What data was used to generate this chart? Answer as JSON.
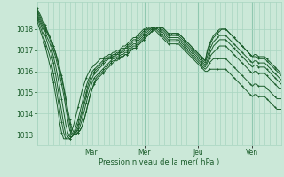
{
  "background_color": "#cbe8d8",
  "grid_color": "#a8d5c0",
  "line_color": "#1a5c2a",
  "marker_color": "#1a5c2a",
  "xlabel": "Pression niveau de la mer( hPa )",
  "ylim": [
    1012.5,
    1019.3
  ],
  "yticks": [
    1013,
    1014,
    1015,
    1016,
    1017,
    1018
  ],
  "day_labels": [
    "Mar",
    "Mer",
    "Jeu",
    "Ven"
  ],
  "day_positions": [
    0.22,
    0.44,
    0.66,
    0.88
  ],
  "num_points": 120,
  "series": [
    [
      1018.9,
      1018.7,
      1018.5,
      1018.3,
      1018.1,
      1017.9,
      1017.7,
      1017.5,
      1017.2,
      1016.9,
      1016.6,
      1016.2,
      1015.8,
      1015.3,
      1014.8,
      1014.2,
      1013.7,
      1013.3,
      1013.1,
      1013.0,
      1013.1,
      1013.2,
      1013.4,
      1013.7,
      1014.1,
      1014.5,
      1014.9,
      1015.2,
      1015.4,
      1015.6,
      1015.7,
      1015.8,
      1015.9,
      1016.0,
      1016.1,
      1016.2,
      1016.3,
      1016.4,
      1016.5,
      1016.5,
      1016.6,
      1016.7,
      1016.7,
      1016.8,
      1016.8,
      1016.9,
      1017.0,
      1017.1,
      1017.1,
      1017.2,
      1017.3,
      1017.4,
      1017.5,
      1017.6,
      1017.7,
      1017.8,
      1017.9,
      1018.0,
      1018.0,
      1018.1,
      1018.1,
      1018.1,
      1018.0,
      1017.9,
      1017.8,
      1017.8,
      1017.8,
      1017.8,
      1017.8,
      1017.8,
      1017.7,
      1017.6,
      1017.5,
      1017.4,
      1017.3,
      1017.2,
      1017.1,
      1017.0,
      1016.9,
      1016.8,
      1016.7,
      1016.6,
      1016.5,
      1016.9,
      1017.2,
      1017.4,
      1017.6,
      1017.7,
      1017.8,
      1017.9,
      1018.0,
      1018.0,
      1018.0,
      1017.9,
      1017.8,
      1017.7,
      1017.6,
      1017.5,
      1017.4,
      1017.3,
      1017.2,
      1017.1,
      1017.0,
      1016.9,
      1016.8,
      1016.7,
      1016.8,
      1016.8,
      1016.7,
      1016.7,
      1016.7,
      1016.7,
      1016.6,
      1016.5,
      1016.4,
      1016.3,
      1016.2,
      1016.1,
      1016.0,
      1015.9
    ],
    [
      1018.8,
      1018.6,
      1018.4,
      1018.2,
      1018.0,
      1017.8,
      1017.6,
      1017.3,
      1017.0,
      1016.7,
      1016.3,
      1015.9,
      1015.4,
      1014.9,
      1014.3,
      1013.7,
      1013.2,
      1013.0,
      1013.0,
      1013.1,
      1013.2,
      1013.4,
      1013.7,
      1014.1,
      1014.5,
      1014.9,
      1015.2,
      1015.5,
      1015.7,
      1015.8,
      1015.9,
      1016.0,
      1016.1,
      1016.2,
      1016.3,
      1016.4,
      1016.5,
      1016.6,
      1016.6,
      1016.7,
      1016.7,
      1016.8,
      1016.8,
      1016.9,
      1016.9,
      1017.0,
      1017.1,
      1017.2,
      1017.2,
      1017.3,
      1017.4,
      1017.5,
      1017.6,
      1017.7,
      1017.8,
      1017.9,
      1018.0,
      1018.0,
      1018.1,
      1018.1,
      1018.1,
      1018.0,
      1017.9,
      1017.8,
      1017.7,
      1017.7,
      1017.7,
      1017.7,
      1017.7,
      1017.7,
      1017.6,
      1017.5,
      1017.4,
      1017.3,
      1017.2,
      1017.1,
      1017.0,
      1016.9,
      1016.8,
      1016.7,
      1016.6,
      1016.5,
      1016.4,
      1016.7,
      1017.0,
      1017.2,
      1017.4,
      1017.5,
      1017.6,
      1017.7,
      1017.7,
      1017.7,
      1017.7,
      1017.6,
      1017.5,
      1017.4,
      1017.3,
      1017.2,
      1017.1,
      1017.0,
      1016.9,
      1016.8,
      1016.7,
      1016.6,
      1016.5,
      1016.4,
      1016.5,
      1016.5,
      1016.4,
      1016.4,
      1016.4,
      1016.4,
      1016.3,
      1016.2,
      1016.1,
      1016.0,
      1015.9,
      1015.8,
      1015.7,
      1015.6
    ],
    [
      1018.7,
      1018.5,
      1018.3,
      1018.1,
      1017.9,
      1017.6,
      1017.4,
      1017.1,
      1016.7,
      1016.3,
      1015.8,
      1015.3,
      1014.7,
      1014.1,
      1013.5,
      1013.1,
      1012.9,
      1012.9,
      1013.0,
      1013.1,
      1013.3,
      1013.6,
      1014.0,
      1014.4,
      1014.8,
      1015.2,
      1015.5,
      1015.7,
      1015.9,
      1016.0,
      1016.1,
      1016.2,
      1016.3,
      1016.4,
      1016.5,
      1016.6,
      1016.6,
      1016.7,
      1016.7,
      1016.8,
      1016.8,
      1016.9,
      1016.9,
      1017.0,
      1017.0,
      1017.1,
      1017.2,
      1017.3,
      1017.3,
      1017.4,
      1017.5,
      1017.6,
      1017.7,
      1017.8,
      1017.9,
      1018.0,
      1018.0,
      1018.1,
      1018.1,
      1018.1,
      1018.0,
      1017.9,
      1017.8,
      1017.7,
      1017.6,
      1017.6,
      1017.6,
      1017.6,
      1017.6,
      1017.6,
      1017.5,
      1017.4,
      1017.3,
      1017.2,
      1017.1,
      1017.0,
      1016.9,
      1016.8,
      1016.7,
      1016.6,
      1016.5,
      1016.4,
      1016.3,
      1016.5,
      1016.8,
      1017.0,
      1017.2,
      1017.3,
      1017.4,
      1017.5,
      1017.5,
      1017.5,
      1017.5,
      1017.4,
      1017.3,
      1017.2,
      1017.1,
      1017.0,
      1016.9,
      1016.8,
      1016.7,
      1016.6,
      1016.5,
      1016.4,
      1016.3,
      1016.2,
      1016.3,
      1016.3,
      1016.2,
      1016.2,
      1016.2,
      1016.2,
      1016.1,
      1016.0,
      1015.9,
      1015.8,
      1015.7,
      1015.6,
      1015.5,
      1015.4
    ],
    [
      1018.6,
      1018.4,
      1018.2,
      1017.9,
      1017.7,
      1017.4,
      1017.1,
      1016.8,
      1016.4,
      1015.9,
      1015.3,
      1014.7,
      1014.1,
      1013.5,
      1013.0,
      1012.9,
      1012.8,
      1012.9,
      1013.0,
      1013.2,
      1013.5,
      1013.8,
      1014.2,
      1014.6,
      1015.0,
      1015.4,
      1015.7,
      1015.9,
      1016.0,
      1016.1,
      1016.2,
      1016.3,
      1016.4,
      1016.5,
      1016.6,
      1016.6,
      1016.7,
      1016.7,
      1016.8,
      1016.8,
      1016.9,
      1016.9,
      1017.0,
      1017.1,
      1017.1,
      1017.2,
      1017.3,
      1017.4,
      1017.4,
      1017.5,
      1017.6,
      1017.7,
      1017.8,
      1017.9,
      1018.0,
      1018.0,
      1018.1,
      1018.1,
      1018.1,
      1018.0,
      1017.9,
      1017.8,
      1017.7,
      1017.6,
      1017.5,
      1017.5,
      1017.5,
      1017.5,
      1017.5,
      1017.5,
      1017.4,
      1017.3,
      1017.2,
      1017.1,
      1017.0,
      1016.9,
      1016.8,
      1016.7,
      1016.6,
      1016.5,
      1016.4,
      1016.3,
      1016.2,
      1016.4,
      1016.6,
      1016.8,
      1016.9,
      1017.0,
      1017.1,
      1017.2,
      1017.2,
      1017.2,
      1017.2,
      1017.1,
      1017.0,
      1016.9,
      1016.8,
      1016.7,
      1016.6,
      1016.5,
      1016.4,
      1016.3,
      1016.2,
      1016.1,
      1016.0,
      1015.9,
      1016.0,
      1016.0,
      1015.9,
      1015.9,
      1015.9,
      1015.9,
      1015.8,
      1015.7,
      1015.6,
      1015.5,
      1015.4,
      1015.3,
      1015.2,
      1015.2
    ],
    [
      1018.5,
      1018.3,
      1018.0,
      1017.7,
      1017.4,
      1017.1,
      1016.8,
      1016.4,
      1015.9,
      1015.4,
      1014.8,
      1014.2,
      1013.6,
      1013.1,
      1012.8,
      1012.8,
      1012.8,
      1012.9,
      1013.1,
      1013.4,
      1013.7,
      1014.1,
      1014.5,
      1014.9,
      1015.3,
      1015.6,
      1015.8,
      1016.0,
      1016.1,
      1016.2,
      1016.3,
      1016.4,
      1016.5,
      1016.6,
      1016.6,
      1016.7,
      1016.7,
      1016.8,
      1016.8,
      1016.9,
      1016.9,
      1017.0,
      1017.1,
      1017.1,
      1017.2,
      1017.3,
      1017.4,
      1017.5,
      1017.5,
      1017.6,
      1017.7,
      1017.8,
      1017.9,
      1018.0,
      1018.0,
      1018.1,
      1018.1,
      1018.1,
      1018.0,
      1017.9,
      1017.8,
      1017.7,
      1017.6,
      1017.5,
      1017.4,
      1017.4,
      1017.4,
      1017.4,
      1017.4,
      1017.4,
      1017.3,
      1017.2,
      1017.1,
      1017.0,
      1016.9,
      1016.8,
      1016.7,
      1016.6,
      1016.5,
      1016.4,
      1016.3,
      1016.2,
      1016.1,
      1016.2,
      1016.4,
      1016.5,
      1016.6,
      1016.6,
      1016.6,
      1016.6,
      1016.6,
      1016.6,
      1016.6,
      1016.5,
      1016.4,
      1016.3,
      1016.2,
      1016.1,
      1016.0,
      1015.9,
      1015.8,
      1015.7,
      1015.6,
      1015.5,
      1015.4,
      1015.3,
      1015.4,
      1015.4,
      1015.3,
      1015.3,
      1015.3,
      1015.3,
      1015.2,
      1015.1,
      1015.0,
      1014.9,
      1014.8,
      1014.7,
      1014.7,
      1014.7
    ],
    [
      1018.4,
      1018.1,
      1017.8,
      1017.5,
      1017.2,
      1016.8,
      1016.4,
      1016.0,
      1015.5,
      1014.9,
      1014.3,
      1013.6,
      1013.1,
      1012.8,
      1012.8,
      1012.9,
      1013.0,
      1013.2,
      1013.5,
      1013.9,
      1014.3,
      1014.7,
      1015.1,
      1015.4,
      1015.7,
      1015.9,
      1016.1,
      1016.2,
      1016.3,
      1016.4,
      1016.5,
      1016.6,
      1016.6,
      1016.7,
      1016.7,
      1016.8,
      1016.8,
      1016.9,
      1016.9,
      1017.0,
      1017.0,
      1017.1,
      1017.2,
      1017.2,
      1017.3,
      1017.4,
      1017.5,
      1017.6,
      1017.6,
      1017.7,
      1017.8,
      1017.9,
      1018.0,
      1018.0,
      1018.1,
      1018.1,
      1018.1,
      1018.0,
      1017.9,
      1017.8,
      1017.7,
      1017.6,
      1017.5,
      1017.4,
      1017.3,
      1017.3,
      1017.3,
      1017.3,
      1017.3,
      1017.3,
      1017.2,
      1017.1,
      1017.0,
      1016.9,
      1016.8,
      1016.7,
      1016.6,
      1016.5,
      1016.4,
      1016.3,
      1016.2,
      1016.1,
      1016.0,
      1016.0,
      1016.1,
      1016.1,
      1016.1,
      1016.1,
      1016.1,
      1016.1,
      1016.1,
      1016.1,
      1016.1,
      1016.0,
      1015.9,
      1015.8,
      1015.7,
      1015.6,
      1015.5,
      1015.4,
      1015.3,
      1015.2,
      1015.1,
      1015.0,
      1014.9,
      1014.8,
      1014.9,
      1014.9,
      1014.8,
      1014.8,
      1014.8,
      1014.8,
      1014.7,
      1014.6,
      1014.5,
      1014.4,
      1014.3,
      1014.2,
      1014.2,
      1014.2
    ],
    [
      1019.0,
      1018.8,
      1018.6,
      1018.4,
      1018.2,
      1017.9,
      1017.7,
      1017.5,
      1017.2,
      1016.9,
      1016.5,
      1016.1,
      1015.7,
      1015.2,
      1014.6,
      1014.0,
      1013.5,
      1013.1,
      1013.0,
      1013.0,
      1013.1,
      1013.2,
      1013.4,
      1013.7,
      1014.1,
      1014.5,
      1014.9,
      1015.2,
      1015.5,
      1015.7,
      1015.8,
      1015.9,
      1016.0,
      1016.1,
      1016.2,
      1016.3,
      1016.4,
      1016.5,
      1016.5,
      1016.6,
      1016.6,
      1016.7,
      1016.7,
      1016.8,
      1016.8,
      1016.9,
      1017.0,
      1017.1,
      1017.1,
      1017.2,
      1017.3,
      1017.4,
      1017.5,
      1017.6,
      1017.7,
      1017.8,
      1017.9,
      1018.0,
      1018.0,
      1018.1,
      1018.1,
      1018.1,
      1018.0,
      1017.9,
      1017.8,
      1017.7,
      1017.8,
      1017.8,
      1017.8,
      1017.8,
      1017.7,
      1017.6,
      1017.5,
      1017.4,
      1017.3,
      1017.2,
      1017.1,
      1017.0,
      1016.9,
      1016.8,
      1016.7,
      1016.6,
      1016.5,
      1017.0,
      1017.3,
      1017.5,
      1017.7,
      1017.8,
      1017.9,
      1018.0,
      1018.0,
      1018.0,
      1018.0,
      1017.9,
      1017.8,
      1017.7,
      1017.6,
      1017.5,
      1017.4,
      1017.3,
      1017.2,
      1017.1,
      1017.0,
      1016.9,
      1016.8,
      1016.7,
      1016.7,
      1016.7,
      1016.6,
      1016.6,
      1016.6,
      1016.6,
      1016.5,
      1016.4,
      1016.3,
      1016.2,
      1016.1,
      1016.0,
      1015.9,
      1015.8
    ]
  ]
}
